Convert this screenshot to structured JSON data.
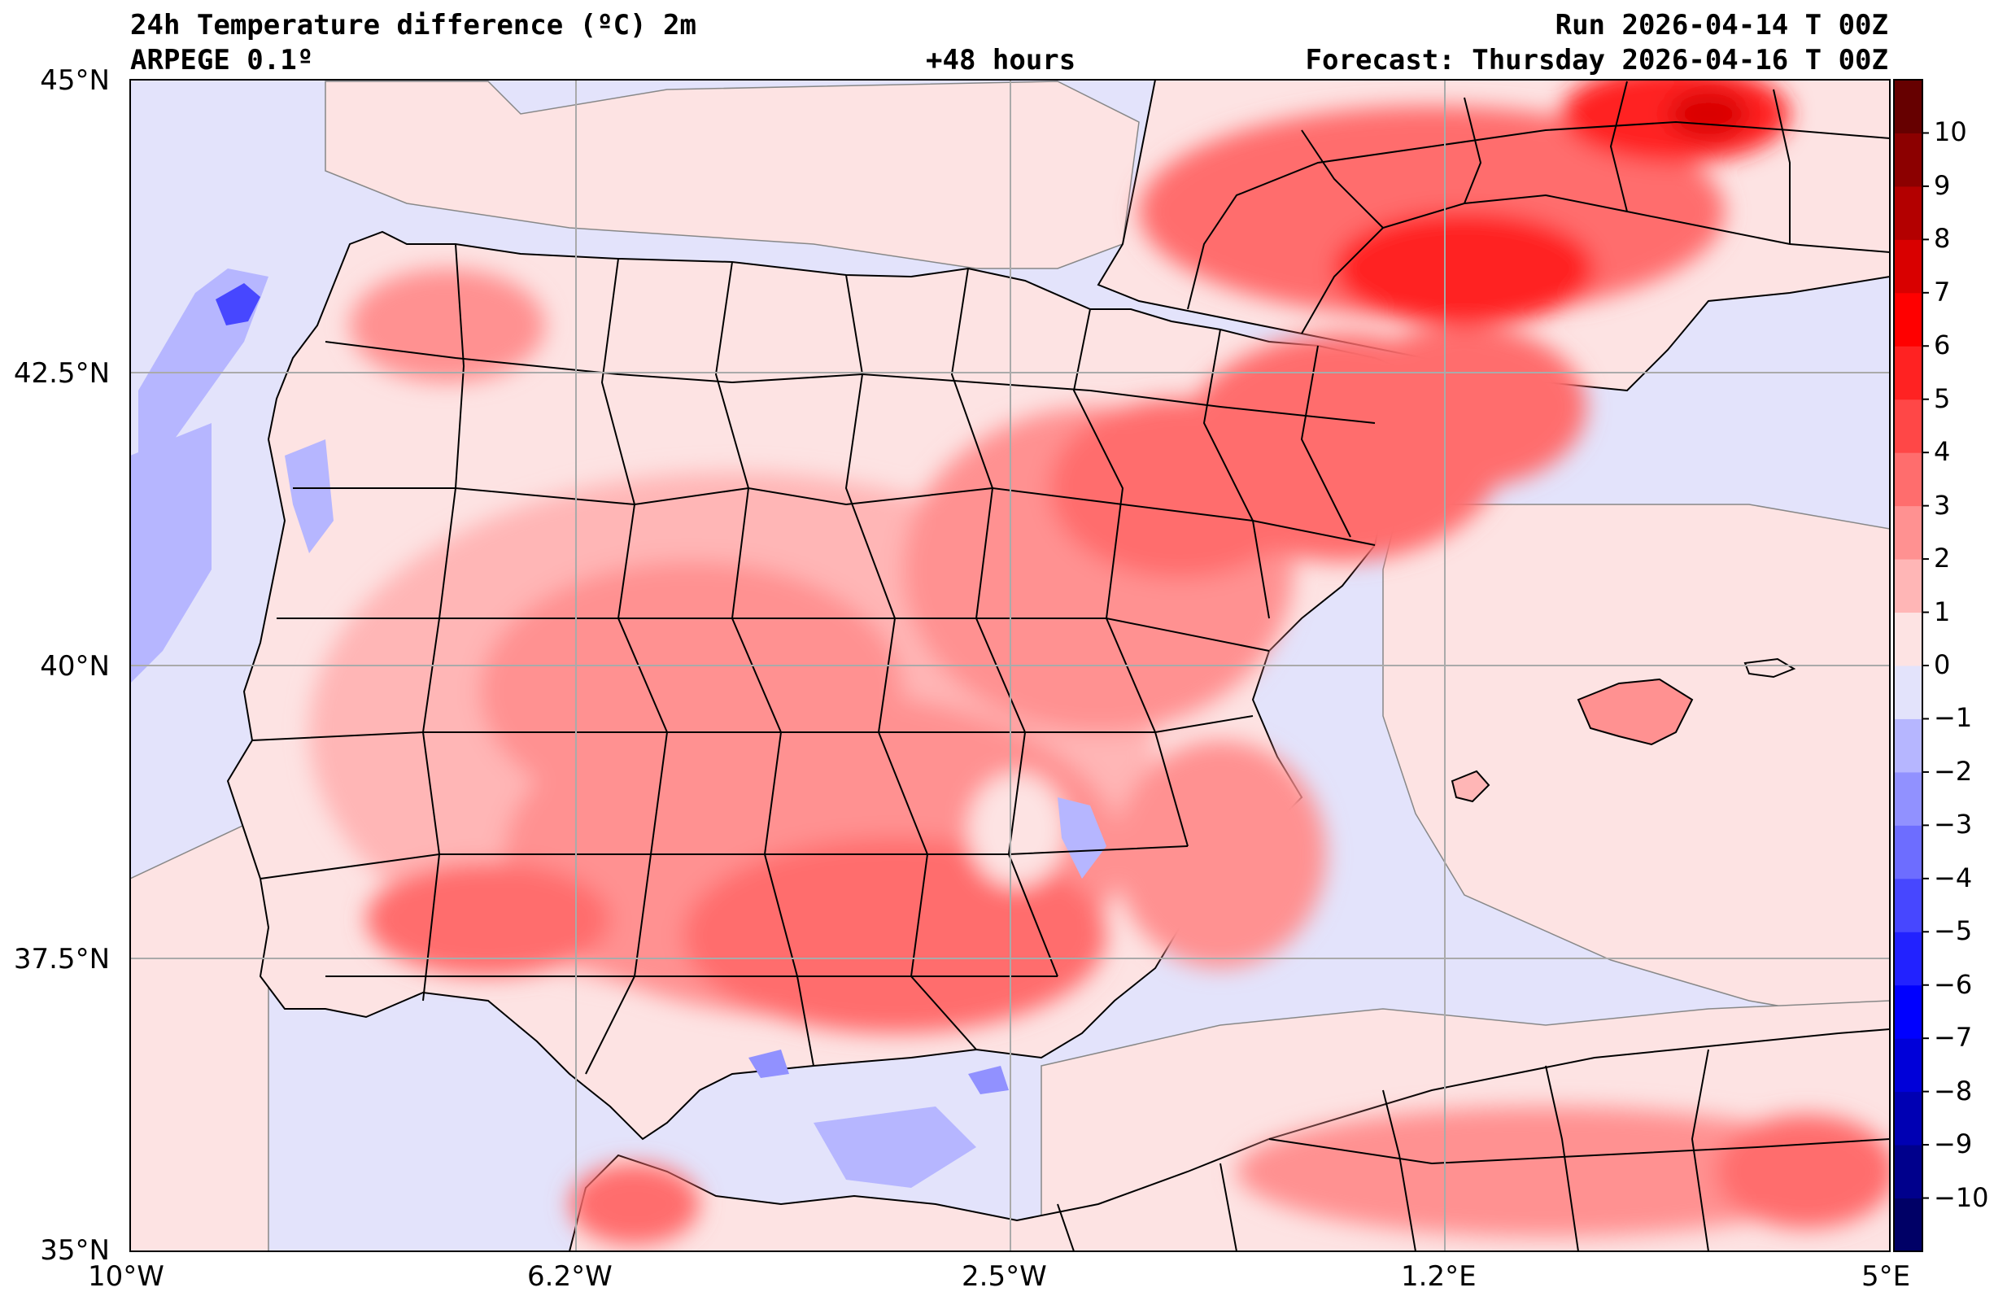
{
  "header": {
    "title": "24h Temperature difference (ºC) 2m",
    "model": "ARPEGE 0.1º",
    "lead_time": "+48 hours",
    "run": "Run 2026-04-14 T 00Z",
    "forecast": "Forecast: Thursday 2026-04-16 T 00Z"
  },
  "map": {
    "lon_range": [
      -10,
      5
    ],
    "lat_range": [
      35,
      45
    ],
    "lon_ticks": [
      "10°W",
      "6.2°W",
      "2.5°W",
      "1.2°E",
      "5°E"
    ],
    "lat_ticks": [
      "45°N",
      "42.5°N",
      "40°N",
      "37.5°N",
      "35°N"
    ],
    "grid": true,
    "sea_color": "#e3e3fb",
    "land_base_color": "#fde3e3",
    "border_color": "#000000"
  },
  "colorbar": {
    "levels": [
      -11,
      -10,
      -9,
      -8,
      -7,
      -6,
      -5,
      -4,
      -3,
      -2,
      -1,
      0,
      1,
      2,
      3,
      4,
      5,
      6,
      7,
      8,
      9,
      10,
      11
    ],
    "tick_labels": [
      "10",
      "9",
      "8",
      "7",
      "6",
      "5",
      "4",
      "3",
      "2",
      "1",
      "0",
      "−1",
      "−2",
      "−3",
      "−4",
      "−5",
      "−6",
      "−7",
      "−8",
      "−9",
      "−10"
    ],
    "colors": [
      "#000066",
      "#00008c",
      "#0000b3",
      "#0000d9",
      "#0000ff",
      "#2222ff",
      "#4747ff",
      "#6d6dff",
      "#9191ff",
      "#b6b6ff",
      "#e3e3fb",
      "#fde3e3",
      "#ffb6b6",
      "#ff9191",
      "#ff6d6d",
      "#ff4747",
      "#ff2222",
      "#ff0000",
      "#d90000",
      "#b30000",
      "#8c0000",
      "#660000"
    ]
  }
}
